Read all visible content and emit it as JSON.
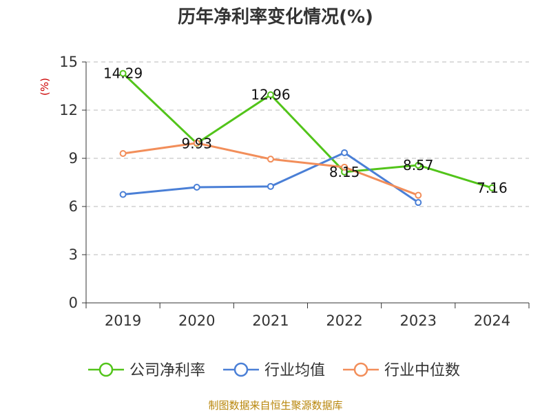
{
  "chart_data": {
    "type": "line",
    "title": "历年净利率变化情况(%)",
    "ylabel": "(%)",
    "xlabel": "",
    "ylim": [
      0,
      15
    ],
    "yticks": [
      0,
      3,
      6,
      9,
      12,
      15
    ],
    "categories": [
      "2019",
      "2020",
      "2021",
      "2022",
      "2023",
      "2024"
    ],
    "grid": "horizontal-dashed",
    "legend_position": "bottom",
    "series": [
      {
        "name": "公司净利率",
        "color": "#52c41a",
        "values": [
          14.29,
          9.93,
          12.96,
          8.15,
          8.57,
          7.16
        ],
        "labels": [
          "14.29",
          "9.93",
          "12.96",
          "8.15",
          "8.57",
          "7.16"
        ]
      },
      {
        "name": "行业均值",
        "color": "#4a7fd6",
        "values": [
          6.75,
          7.2,
          7.25,
          9.35,
          6.25,
          null
        ]
      },
      {
        "name": "行业中位数",
        "color": "#f28e5a",
        "values": [
          9.3,
          9.95,
          8.95,
          8.45,
          6.7,
          null
        ]
      }
    ]
  },
  "source": "制图数据来自恒生聚源数据库"
}
